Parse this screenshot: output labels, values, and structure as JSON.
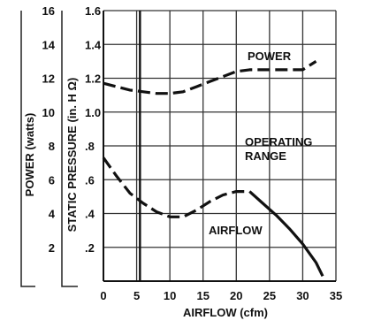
{
  "chart_data": {
    "type": "line",
    "title": "",
    "xlabel": "AIRFLOW (cfm)",
    "ylabel_left": "STATIC PRESSURE (in. H Ω)",
    "ylabel_power": "POWER (watts)",
    "xlim": [
      0,
      35
    ],
    "ylim": [
      0,
      1.6
    ],
    "power_lim": [
      0,
      16
    ],
    "x_ticks": [
      "0",
      "5",
      "10",
      "15",
      "20",
      "25",
      "30",
      "35"
    ],
    "pressure_ticks": [
      ".2",
      ".4",
      ".6",
      ".8",
      "1.0",
      "1.2",
      "1.4",
      "1.6"
    ],
    "power_ticks": [
      "2",
      "4",
      "6",
      "8",
      "10",
      "12",
      "14",
      "16"
    ],
    "grid": true,
    "operating_limit_x": 5.5,
    "annotations": {
      "power": "POWER",
      "operating_1": "OPERATING",
      "operating_2": "RANGE",
      "airflow": "AIRFLOW"
    },
    "series": [
      {
        "id": "power",
        "axis": "power",
        "style": "dashed",
        "x": [
          0,
          2,
          4,
          6,
          8,
          10,
          12,
          14,
          16,
          18,
          20,
          22,
          24,
          26,
          28,
          30,
          32
        ],
        "y": [
          11.7,
          11.5,
          11.3,
          11.2,
          11.1,
          11.1,
          11.2,
          11.5,
          11.8,
          12.1,
          12.4,
          12.5,
          12.5,
          12.5,
          12.5,
          12.5,
          13.0
        ]
      },
      {
        "id": "airflow",
        "axis": "pressure",
        "style": "dashed",
        "x": [
          0,
          2,
          4,
          6,
          8,
          10,
          12,
          14,
          16,
          18,
          20,
          22
        ],
        "y": [
          0.73,
          0.62,
          0.52,
          0.46,
          0.41,
          0.38,
          0.38,
          0.42,
          0.47,
          0.51,
          0.53,
          0.53
        ]
      },
      {
        "id": "airflow-operating",
        "axis": "pressure",
        "style": "solid",
        "x": [
          22,
          24,
          26,
          28,
          30,
          32,
          33
        ],
        "y": [
          0.53,
          0.46,
          0.39,
          0.31,
          0.22,
          0.11,
          0.03
        ]
      }
    ]
  }
}
